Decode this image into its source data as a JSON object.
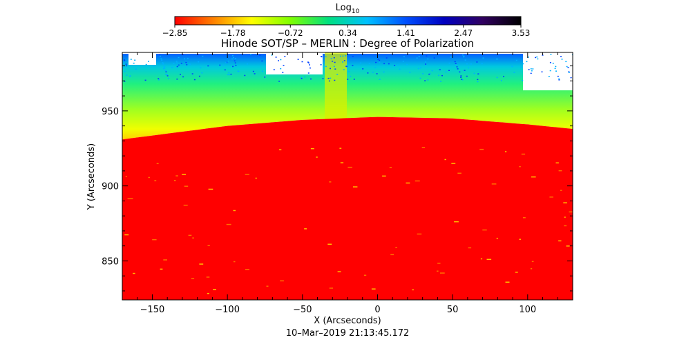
{
  "chart_data": {
    "type": "heatmap",
    "title": "Hinode SOT/SP – MERLIN : Degree of Polarization",
    "xlabel": "X (Arcseconds)",
    "ylabel": "Y (Arcseconds)",
    "timestamp": "10–Mar–2019 21:13:45.172",
    "xlim": [
      -170,
      130
    ],
    "ylim": [
      824,
      989
    ],
    "x_ticks": [
      -150,
      -100,
      -50,
      0,
      50,
      100
    ],
    "x_tick_labels": [
      "−150",
      "−100",
      "−50",
      "0",
      "50",
      "100"
    ],
    "y_ticks": [
      850,
      900,
      950
    ],
    "y_tick_labels": [
      "850",
      "900",
      "950"
    ],
    "colorbar": {
      "label_base": "Log",
      "label_sub": "10",
      "min": -2.85,
      "max": 3.53,
      "tick_values": [
        -2.85,
        -1.78,
        -0.72,
        0.34,
        1.41,
        2.47,
        3.53
      ],
      "tick_labels": [
        "−2.85",
        "−1.78",
        "−0.72",
        "0.34",
        "1.41",
        "2.47",
        "3.53"
      ],
      "colormap": [
        "#ff0000",
        "#ff8000",
        "#ffff00",
        "#80ff00",
        "#00e080",
        "#00c0ff",
        "#0050ff",
        "#0000c0",
        "#300060",
        "#000000"
      ]
    },
    "limb": {
      "description_points_x": [
        -170,
        -100,
        -50,
        0,
        50,
        100,
        130
      ],
      "description_points_y": [
        931,
        940,
        944,
        946,
        945,
        941,
        938
      ]
    },
    "disk_value": -2.85,
    "grid": false
  }
}
